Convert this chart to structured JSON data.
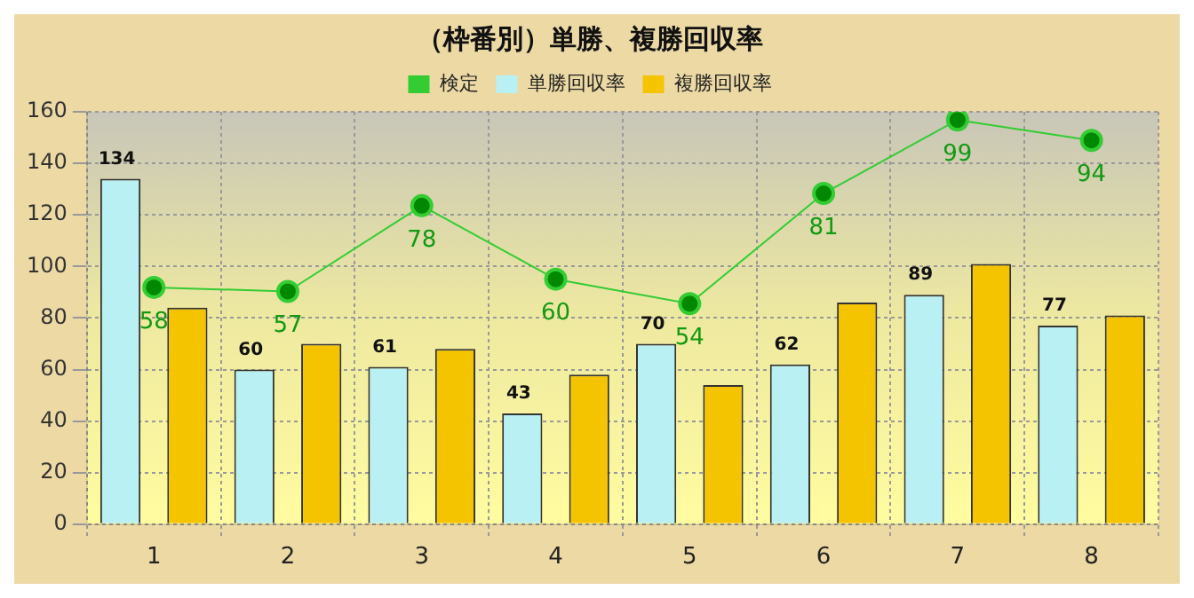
{
  "chart_data": {
    "type": "bar",
    "title": "（枠番別）単勝、複勝回収率",
    "categories": [
      "1",
      "2",
      "3",
      "4",
      "5",
      "6",
      "7",
      "8"
    ],
    "series": [
      {
        "name": "検定",
        "type": "line",
        "axis": "y2",
        "color": "#33cc33",
        "marker": "circle",
        "values": [
          58,
          57,
          78,
          60,
          54,
          81,
          99,
          94
        ],
        "value_labels": [
          "58",
          "57",
          "78",
          "60",
          "54",
          "81",
          "99",
          "94"
        ]
      },
      {
        "name": "単勝回収率",
        "color": "#b8f0f4",
        "values": [
          134,
          60,
          61,
          43,
          70,
          62,
          89,
          77
        ],
        "value_labels": [
          "134",
          "60",
          "61",
          "43",
          "70",
          "62",
          "89",
          "77"
        ]
      },
      {
        "name": "複勝回収率",
        "color": "#f5c400",
        "values": [
          84,
          70,
          68,
          58,
          54,
          86,
          101,
          81
        ]
      }
    ],
    "ylim": [
      0,
      160
    ],
    "y2lim": [
      0,
      101
    ],
    "yticks": [
      0,
      20,
      40,
      60,
      80,
      100,
      120,
      140,
      160
    ],
    "grid": true,
    "legend": "top"
  }
}
